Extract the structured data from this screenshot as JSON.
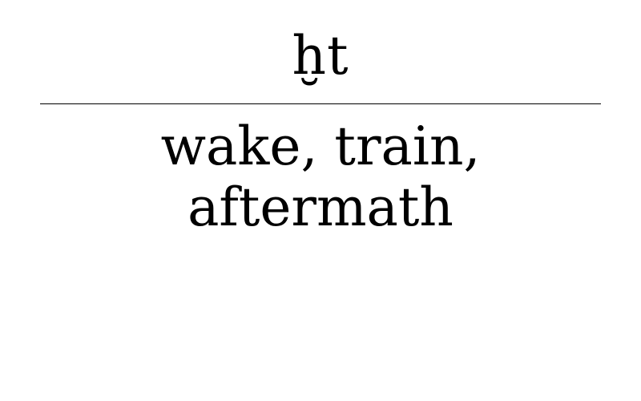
{
  "card": {
    "term": "ḫt",
    "definition_lines": [
      "wake, train,",
      "aftermath"
    ]
  }
}
